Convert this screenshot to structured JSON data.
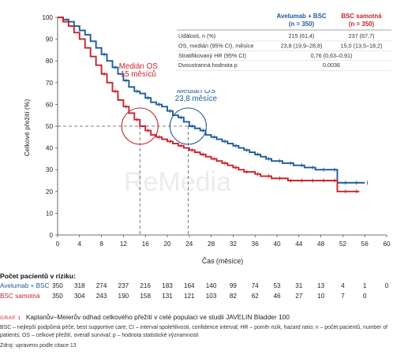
{
  "chart_data": {
    "type": "line",
    "xlabel": "Čas (měsíce)",
    "ylabel": "Celkové přežití (%)",
    "xlim": [
      0,
      60
    ],
    "ylim": [
      0,
      100
    ],
    "xticks": [
      0,
      4,
      8,
      12,
      16,
      20,
      24,
      28,
      32,
      36,
      40,
      44,
      48,
      52,
      56,
      60
    ],
    "yticks": [
      0,
      10,
      20,
      30,
      40,
      50,
      60,
      70,
      80,
      90,
      100
    ],
    "grid": false,
    "series": [
      {
        "name": "Avelumab + BSC",
        "color": "#1f5b9a",
        "x": [
          0,
          1,
          2,
          3,
          4,
          5,
          6,
          7,
          8,
          9,
          10,
          11,
          12,
          13,
          14,
          15,
          16,
          17,
          18,
          19,
          20,
          21,
          22,
          23,
          24,
          25,
          26,
          27,
          28,
          29,
          30,
          31,
          32,
          33,
          34,
          35,
          36,
          37,
          38,
          39,
          40,
          41,
          42,
          43,
          44,
          45,
          46,
          47,
          48,
          49,
          50,
          51,
          52,
          53,
          54,
          55,
          56
        ],
        "y": [
          100,
          99,
          98,
          96,
          94,
          92,
          89,
          86,
          83,
          80,
          77,
          74,
          71,
          68,
          66,
          65,
          63,
          61,
          60,
          59,
          57,
          55,
          54,
          52,
          50,
          49,
          48,
          46,
          45,
          44,
          43,
          42,
          41,
          40,
          39,
          38,
          37,
          36,
          35,
          34,
          34,
          33,
          33,
          32,
          32,
          31,
          31,
          30,
          30,
          30,
          30,
          24,
          24,
          24,
          24,
          24,
          24
        ]
      },
      {
        "name": "BSC samotná",
        "color": "#c8232c",
        "x": [
          0,
          1,
          2,
          3,
          4,
          5,
          6,
          7,
          8,
          9,
          10,
          11,
          12,
          13,
          14,
          15,
          16,
          17,
          18,
          19,
          20,
          21,
          22,
          23,
          24,
          25,
          26,
          27,
          28,
          29,
          30,
          31,
          32,
          33,
          34,
          35,
          36,
          37,
          38,
          39,
          40,
          41,
          42,
          43,
          44,
          45,
          46,
          47,
          48,
          49,
          50,
          51,
          52,
          53,
          54,
          55
        ],
        "y": [
          100,
          98,
          96,
          93,
          90,
          86,
          82,
          78,
          74,
          70,
          66,
          62,
          59,
          56,
          53,
          50,
          48,
          46,
          45,
          44,
          43,
          42,
          41,
          40,
          39,
          38,
          37,
          36,
          35,
          34,
          33,
          32,
          31,
          30,
          29,
          29,
          28,
          27,
          27,
          26,
          26,
          26,
          25,
          25,
          25,
          25,
          25,
          25,
          25,
          25,
          25,
          20,
          20,
          20,
          20,
          20
        ]
      }
    ],
    "median_lines": [
      {
        "x": 15.0,
        "y": 50,
        "color": "#c8232c",
        "label_line1": "Medián OS",
        "label_line2": "15 měsíců"
      },
      {
        "x": 23.8,
        "y": 50,
        "color": "#1f5b9a",
        "label_line1": "Medián OS",
        "label_line2": "23,8 měsíce"
      }
    ],
    "table": {
      "col1_header_line1": "Avelumab + BSC",
      "col1_header_line2": "(n = 350)",
      "col2_header_line1": "BSC samotná",
      "col2_header_line2": "(n = 350)",
      "rows": [
        {
          "label": "Události, n (%)",
          "v1": "215 (61,4)",
          "v2": "237 (67,7)"
        },
        {
          "label": "OS, medián (95% CI), měsíce",
          "v1": "23,8 (19,9–28,8)",
          "v2": "15,0 (13,5–18,2)"
        },
        {
          "label": "Stratifikovaný HR (95% CI)",
          "merged": "0,76 (0,63–0,91)"
        },
        {
          "label": "Dvoustranná hodnota p",
          "merged": "0,0036"
        }
      ]
    },
    "watermark": "ReMedia"
  },
  "risk": {
    "title": "Počet pacientů v riziku:",
    "rows": [
      {
        "label": "Avelumab + BSC",
        "color": "#1f5b9a",
        "values": [
          "350",
          "318",
          "274",
          "237",
          "216",
          "183",
          "164",
          "140",
          "99",
          "74",
          "53",
          "31",
          "13",
          "4",
          "1",
          "0"
        ]
      },
      {
        "label": "BSC samotná",
        "color": "#c8232c",
        "values": [
          "350",
          "304",
          "243",
          "190",
          "158",
          "131",
          "121",
          "103",
          "82",
          "62",
          "46",
          "27",
          "10",
          "7",
          "0",
          ""
        ]
      }
    ]
  },
  "caption": {
    "label": "GRAF 1",
    "text": "Kaplanův–Meierův odhad celkového přežití v celé populaci ve studii JAVELIN Bladder 100"
  },
  "notes": {
    "abbrev": "BSC – nejlepší podpůrná péče, best supportive care; CI – interval spolehlivosti, confidence interval; HR – poměr rizik, hazard ratio; n – počet pacientů, number of patients; OS – celkové přežití, overall survival; p – hodnota statistické významnosti",
    "source": "Zdroj: upraveno podle citace 13"
  }
}
